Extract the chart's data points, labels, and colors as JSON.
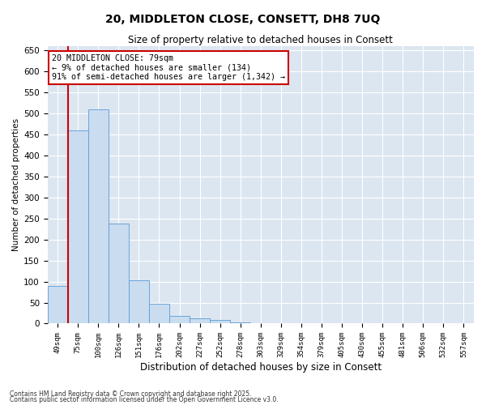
{
  "title": "20, MIDDLETON CLOSE, CONSETT, DH8 7UQ",
  "subtitle": "Size of property relative to detached houses in Consett",
  "xlabel": "Distribution of detached houses by size in Consett",
  "ylabel": "Number of detached properties",
  "footnote1": "Contains HM Land Registry data © Crown copyright and database right 2025.",
  "footnote2": "Contains public sector information licensed under the Open Government Licence v3.0.",
  "annotation_title": "20 MIDDLETON CLOSE: 79sqm",
  "annotation_line1": "← 9% of detached houses are smaller (134)",
  "annotation_line2": "91% of semi-detached houses are larger (1,342) →",
  "bar_color": "#c9dcf0",
  "bar_edge_color": "#5b9bd5",
  "red_line_color": "#cc0000",
  "annotation_box_color": "#cc0000",
  "background_color": "#dce6f1",
  "categories": [
    "49sqm",
    "75sqm",
    "100sqm",
    "126sqm",
    "151sqm",
    "176sqm",
    "202sqm",
    "227sqm",
    "252sqm",
    "278sqm",
    "303sqm",
    "329sqm",
    "354sqm",
    "379sqm",
    "405sqm",
    "430sqm",
    "455sqm",
    "481sqm",
    "506sqm",
    "532sqm",
    "557sqm"
  ],
  "values": [
    90,
    460,
    510,
    238,
    103,
    47,
    18,
    13,
    8,
    2,
    0,
    0,
    0,
    0,
    0,
    0,
    0,
    0,
    0,
    0,
    0
  ],
  "red_line_x": 0.5,
  "ylim": [
    0,
    660
  ],
  "yticks": [
    0,
    50,
    100,
    150,
    200,
    250,
    300,
    350,
    400,
    450,
    500,
    550,
    600,
    650
  ]
}
